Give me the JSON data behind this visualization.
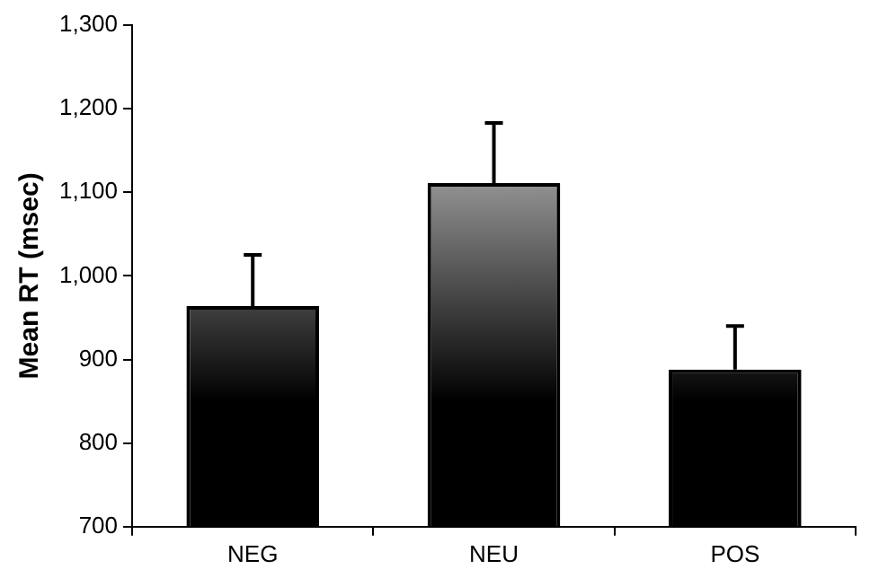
{
  "chart_data": {
    "type": "bar",
    "ylabel": "Mean RT (msec)",
    "categories": [
      "NEG",
      "NEU",
      "POS"
    ],
    "values": [
      964,
      1111,
      888
    ],
    "errors": [
      61,
      72,
      52
    ],
    "color": "#000000",
    "ylim": [
      700,
      1300
    ],
    "yticks": [
      {
        "value": 700,
        "label": "700"
      },
      {
        "value": 800,
        "label": "800"
      },
      {
        "value": 900,
        "label": "900"
      },
      {
        "value": 1000,
        "label": "1,000"
      },
      {
        "value": 1100,
        "label": "1,100"
      },
      {
        "value": 1200,
        "label": "1,200"
      },
      {
        "value": 1300,
        "label": "1,300"
      }
    ],
    "grid": false,
    "legend": false
  }
}
